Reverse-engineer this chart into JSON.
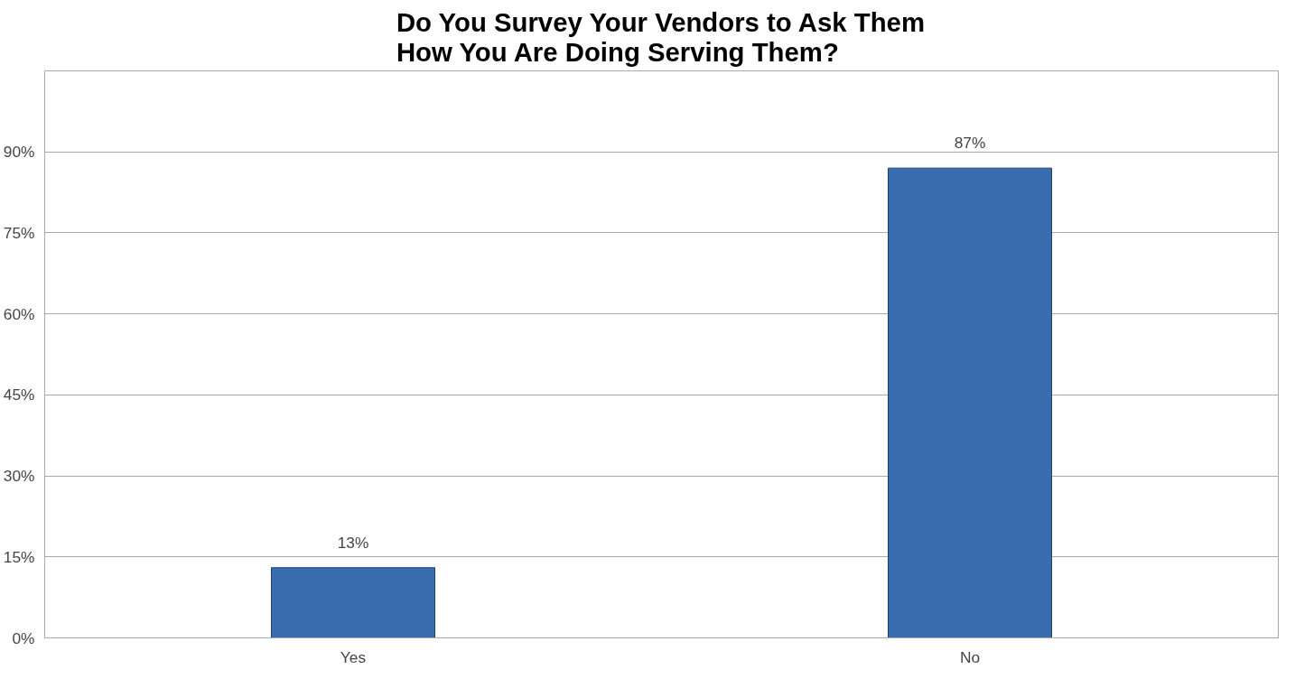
{
  "chart_data": {
    "type": "bar",
    "title": "Do You Survey Your Vendors to Ask Them\nHow You Are Doing Serving Them?",
    "categories": [
      "Yes",
      "No"
    ],
    "values": [
      13,
      87
    ],
    "color": "#3a6cb0",
    "ylim": [
      0,
      105
    ],
    "yticks": [
      {
        "value": 0,
        "label": "0%"
      },
      {
        "value": 15,
        "label": "15%"
      },
      {
        "value": 30,
        "label": "30%"
      },
      {
        "value": 45,
        "label": "45%"
      },
      {
        "value": 60,
        "label": "60%"
      },
      {
        "value": 75,
        "label": "75%"
      },
      {
        "value": 90,
        "label": "90%"
      }
    ],
    "value_labels": [
      "13%",
      "87%"
    ],
    "grid": "y"
  }
}
